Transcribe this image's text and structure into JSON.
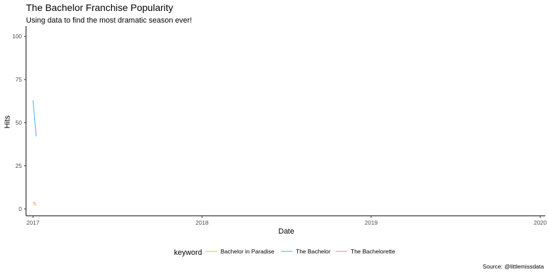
{
  "chart_data": {
    "type": "line",
    "title": "The Bachelor Franchise Popularity",
    "subtitle": "Using data to find the most dramatic season ever!",
    "xlabel": "Date",
    "ylabel": "Hits",
    "caption": "Source: @littlemissdata",
    "legend_title": "keyword",
    "legend_position": "bottom",
    "grid": false,
    "xlim": [
      "2016-12-17",
      "2020-01-12"
    ],
    "ylim": [
      -4,
      106
    ],
    "x_ticks": [
      "2017-01-01",
      "2018-01-01",
      "2019-01-01",
      "2020-01-01"
    ],
    "x_tick_labels": [
      "2017",
      "2018",
      "2019",
      "2020"
    ],
    "y_ticks": [
      0,
      25,
      50,
      75,
      100
    ],
    "series": [
      {
        "name": "Bachelor in Paradise",
        "color": "#F5C200",
        "points": [
          [
            "2017-01-01",
            3
          ],
          [
            "2017-01-08",
            2
          ]
        ]
      },
      {
        "name": "The Bachelor",
        "color": "#35B6E9",
        "points": [
          [
            "2017-01-01",
            63
          ],
          [
            "2017-01-08",
            42
          ]
        ]
      },
      {
        "name": "The Bachelorette",
        "color": "#F27C9A",
        "points": [
          [
            "2017-01-01",
            4
          ],
          [
            "2017-01-08",
            3
          ]
        ]
      }
    ]
  }
}
